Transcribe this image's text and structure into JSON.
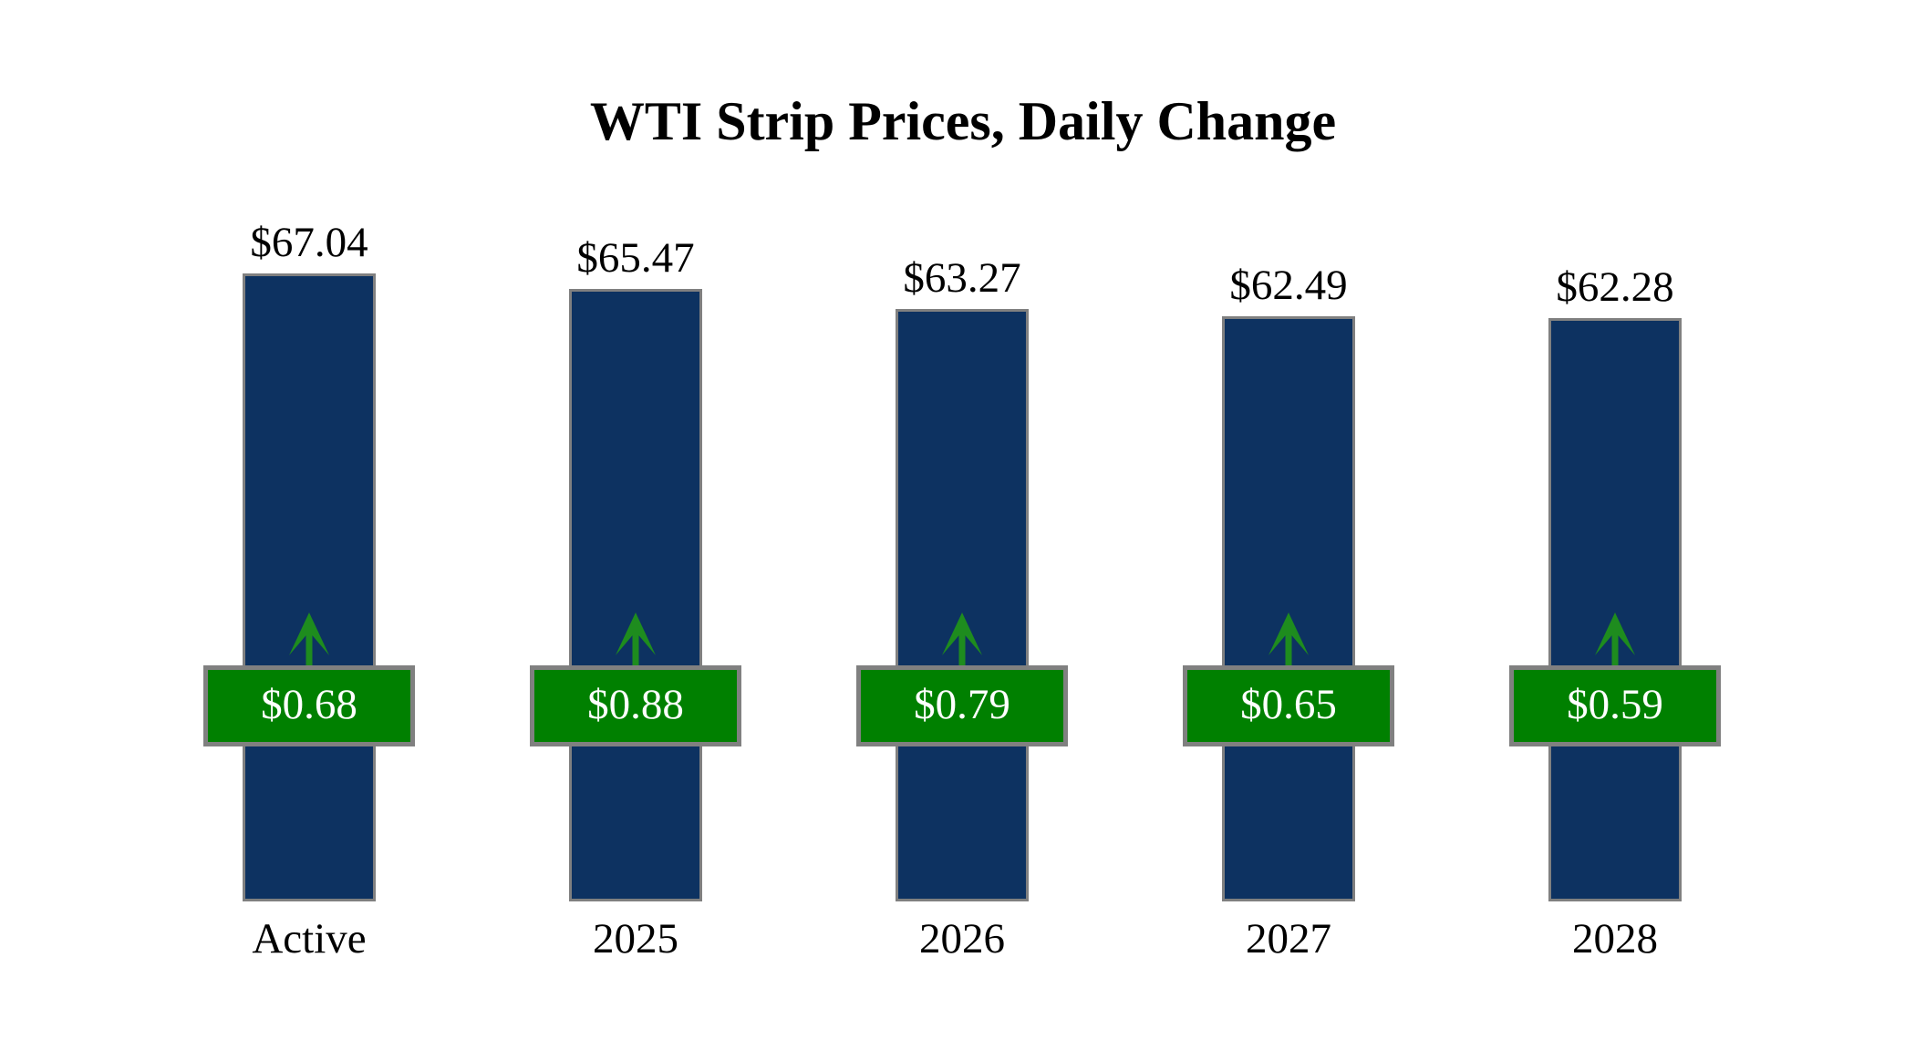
{
  "title": "WTI Strip Prices, Daily Change",
  "colors": {
    "background": "#ffffff",
    "text": "#000000",
    "bar_fill": "#0d3261",
    "bar_border": "#808080",
    "badge_fill": "#008000",
    "badge_border": "#808080",
    "badge_text": "#ffffff",
    "arrow": "#1e8c1e"
  },
  "chart_data": {
    "type": "bar",
    "title": "WTI Strip Prices, Daily Change",
    "categories": [
      "Active",
      "2025",
      "2026",
      "2027",
      "2028"
    ],
    "series": [
      {
        "name": "WTI strip price",
        "unit": "$/bbl",
        "values": [
          67.04,
          65.47,
          63.27,
          62.49,
          62.28
        ],
        "labels": [
          "$67.04",
          "$65.47",
          "$63.27",
          "$62.49",
          "$62.28"
        ]
      },
      {
        "name": "Daily change",
        "unit": "$/bbl",
        "values": [
          0.68,
          0.88,
          0.79,
          0.65,
          0.59
        ],
        "labels": [
          "$0.68",
          "$0.88",
          "$0.79",
          "$0.65",
          "$0.59"
        ],
        "direction": "up"
      }
    ],
    "ylim": [
      0,
      70
    ],
    "grid": false,
    "legend": "none",
    "baseline": "zero"
  }
}
